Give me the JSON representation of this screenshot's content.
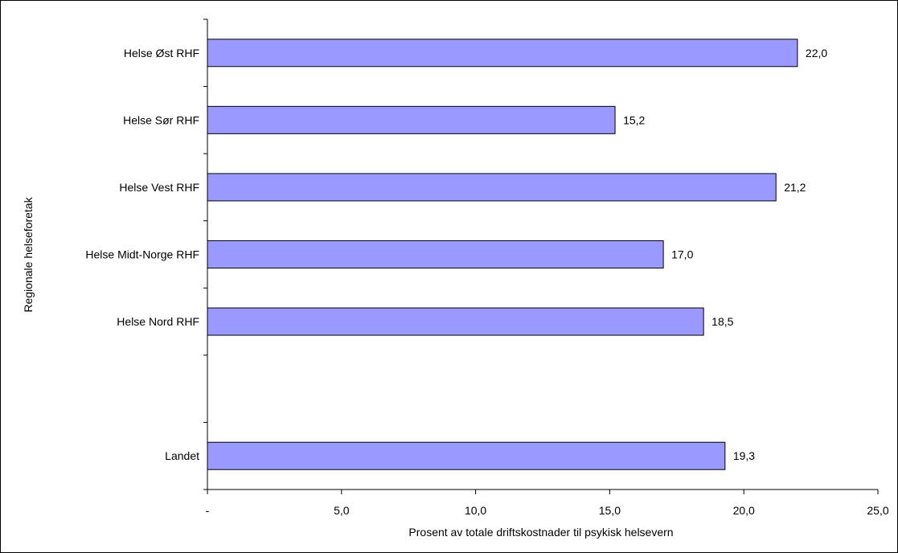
{
  "chart_data": {
    "type": "bar",
    "orientation": "horizontal",
    "categories": [
      "Helse Øst RHF",
      "Helse Sør RHF",
      "Helse Vest RHF",
      "Helse Midt-Norge RHF",
      "Helse Nord RHF",
      "",
      "Landet"
    ],
    "values": [
      22.0,
      15.2,
      21.2,
      17.0,
      18.5,
      null,
      19.3
    ],
    "data_labels": [
      "22,0",
      "15,2",
      "21,2",
      "17,0",
      "18,5",
      "",
      "19,3"
    ],
    "xlabel": "Prosent av totale driftskostnader til psykisk helsevern",
    "ylabel": "Regionale helseforetak",
    "xlim": [
      0,
      25
    ],
    "x_ticks": [
      0,
      5,
      10,
      15,
      20,
      25
    ],
    "x_tick_labels": [
      "-",
      "5,0",
      "10,0",
      "15,0",
      "20,0",
      "25,0"
    ],
    "grid": false,
    "legend": "none",
    "colors": {
      "bar_fill": "#9999ff",
      "bar_stroke": "#000000"
    }
  }
}
